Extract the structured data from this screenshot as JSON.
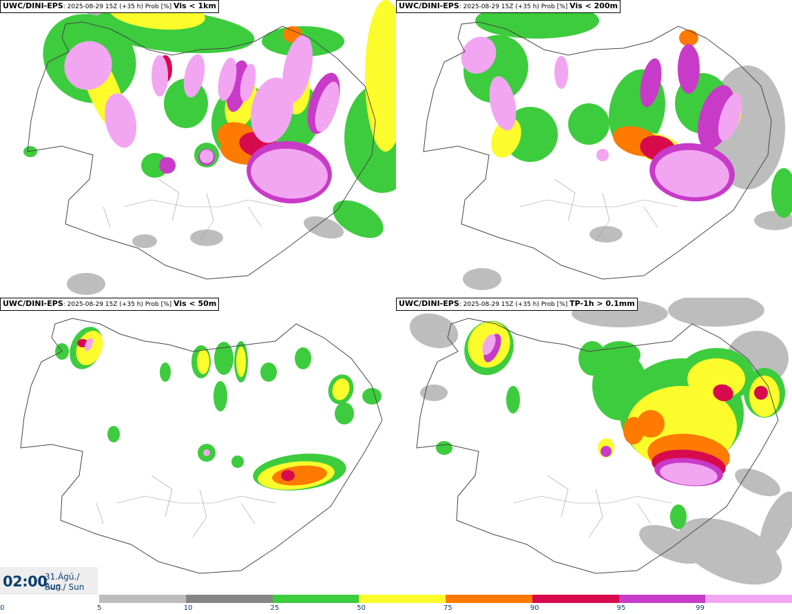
{
  "panels": [
    {
      "model": "UWC/DINI-EPS",
      "run": ": 2025-08-29 15Z (+35 h) Prob [%] ",
      "variable": "Vis < 1km"
    },
    {
      "model": "UWC/DINI-EPS",
      "run": ": 2025-08-29 15Z (+35 h) Prob [%] ",
      "variable": "Vis < 200m"
    },
    {
      "model": "UWC/DINI-EPS",
      "run": ": 2025-08-29 15Z (+35 h) Prob [%] ",
      "variable": "Vis < 50m"
    },
    {
      "model": "UWC/DINI-EPS",
      "run": ": 2025-08-29 15Z (+35 h) Prob [%] ",
      "variable": "TP-1h > 0.1mm"
    }
  ],
  "valid_time": {
    "hour": "02:00",
    "date_line": "31.Ágú./ Aug",
    "day_line": "Sun./ Sun"
  },
  "colorbar": {
    "ticks": [
      "0",
      "5",
      "10",
      "25",
      "50",
      "75",
      "90",
      "95",
      "99"
    ],
    "colors": [
      "#ffffff",
      "#bdbdbd",
      "#858585",
      "#3dcc3d",
      "#fcfc2c",
      "#ff7a00",
      "#d80a4e",
      "#c83ac8",
      "#f2a6f2"
    ]
  },
  "map_fields": {
    "p1": {
      "gray": [
        [
          140,
          25,
          14,
          30,
          0.2
        ],
        [
          125,
          412,
          28,
          16,
          0
        ],
        [
          470,
          330,
          30,
          14,
          0.3
        ],
        [
          300,
          345,
          24,
          12,
          0
        ],
        [
          210,
          350,
          18,
          10,
          0
        ]
      ],
      "green": [
        [
          250,
          45,
          120,
          30,
          0.1
        ],
        [
          555,
          200,
          55,
          80,
          0
        ],
        [
          520,
          318,
          40,
          22,
          0.5
        ],
        [
          440,
          60,
          60,
          22,
          0
        ],
        [
          355,
          180,
          48,
          56,
          0
        ],
        [
          130,
          85,
          70,
          62,
          0.6
        ],
        [
          270,
          150,
          32,
          36,
          0
        ],
        [
          425,
          170,
          40,
          50,
          0.2
        ],
        [
          300,
          225,
          18,
          18,
          0
        ],
        [
          44,
          220,
          10,
          8,
          0
        ],
        [
          225,
          240,
          20,
          18,
          0
        ]
      ],
      "yellow": [
        [
          228,
          20,
          70,
          22,
          0.1
        ],
        [
          560,
          110,
          30,
          110,
          0
        ],
        [
          150,
          130,
          22,
          70,
          -0.4
        ],
        [
          350,
          150,
          22,
          36,
          0.3
        ],
        [
          430,
          130,
          20,
          36,
          0
        ]
      ],
      "orange": [
        [
          345,
          200,
          30,
          22,
          0.3
        ],
        [
          425,
          50,
          14,
          12,
          0
        ],
        [
          360,
          215,
          40,
          24,
          0
        ]
      ],
      "red": [
        [
          375,
          210,
          28,
          18,
          0.2
        ],
        [
          240,
          100,
          10,
          20,
          0
        ]
      ],
      "mag": [
        [
          420,
          250,
          62,
          45,
          0.1
        ],
        [
          345,
          125,
          15,
          38,
          0.2
        ],
        [
          470,
          150,
          20,
          46,
          0.3
        ],
        [
          300,
          228,
          12,
          12,
          0
        ],
        [
          243,
          240,
          12,
          12,
          0
        ]
      ],
      "pink": [
        [
          420,
          252,
          56,
          36,
          0.1
        ],
        [
          395,
          160,
          30,
          48,
          0.2
        ],
        [
          432,
          100,
          20,
          50,
          0.2
        ],
        [
          128,
          95,
          34,
          36,
          0.6
        ],
        [
          175,
          175,
          22,
          40,
          -0.2
        ],
        [
          232,
          110,
          12,
          30,
          0
        ],
        [
          282,
          110,
          14,
          32,
          0.2
        ],
        [
          330,
          115,
          12,
          32,
          0.2
        ],
        [
          300,
          227,
          10,
          10,
          0
        ],
        [
          475,
          155,
          14,
          38,
          0.3
        ],
        [
          360,
          120,
          10,
          28,
          0.2
        ]
      ]
    },
    "p2": {
      "gray": [
        [
          700,
          405,
          28,
          16,
          0
        ],
        [
          1085,
          185,
          55,
          90,
          0
        ],
        [
          1125,
          320,
          30,
          14,
          0
        ],
        [
          880,
          340,
          24,
          12,
          0
        ]
      ],
      "green": [
        [
          780,
          30,
          90,
          26,
          0
        ],
        [
          1138,
          280,
          18,
          36,
          0
        ],
        [
          770,
          195,
          40,
          40,
          0.4
        ],
        [
          720,
          100,
          46,
          50,
          0.5
        ],
        [
          855,
          180,
          30,
          30,
          0
        ],
        [
          925,
          160,
          40,
          60,
          0.2
        ],
        [
          1020,
          150,
          40,
          44,
          0
        ]
      ],
      "yellow": [
        [
          735,
          200,
          20,
          30,
          0.4
        ],
        [
          955,
          215,
          40,
          20,
          0.3
        ],
        [
          1050,
          165,
          26,
          34,
          0.3
        ]
      ],
      "orange": [
        [
          925,
          205,
          36,
          20,
          0.3
        ],
        [
          1000,
          55,
          14,
          12,
          0
        ]
      ],
      "red": [
        [
          955,
          215,
          26,
          18,
          0.2
        ],
        [
          1005,
          90,
          10,
          20,
          0
        ]
      ],
      "mag": [
        [
          1005,
          250,
          62,
          42,
          0.1
        ],
        [
          1040,
          170,
          24,
          48,
          0.3
        ],
        [
          945,
          120,
          14,
          36,
          0.2
        ],
        [
          1000,
          100,
          16,
          36,
          0
        ]
      ],
      "pink": [
        [
          1005,
          252,
          54,
          34,
          0.1
        ],
        [
          695,
          80,
          24,
          28,
          0.6
        ],
        [
          730,
          150,
          18,
          40,
          -0.2
        ],
        [
          815,
          105,
          10,
          24,
          0
        ],
        [
          875,
          225,
          9,
          9,
          0
        ],
        [
          1060,
          170,
          14,
          36,
          0.3
        ]
      ]
    },
    "p3": {
      "gray": [],
      "green": [
        [
          125,
          505,
          22,
          32,
          0.4
        ],
        [
          90,
          510,
          10,
          12,
          0
        ],
        [
          240,
          540,
          8,
          14,
          0
        ],
        [
          292,
          525,
          14,
          24,
          0
        ],
        [
          325,
          520,
          14,
          24,
          0
        ],
        [
          350,
          525,
          10,
          30,
          0
        ],
        [
          320,
          575,
          10,
          22,
          0
        ],
        [
          390,
          540,
          12,
          14,
          0
        ],
        [
          495,
          565,
          18,
          22,
          0.3
        ],
        [
          540,
          575,
          14,
          12,
          0
        ],
        [
          435,
          685,
          68,
          26,
          -0.1
        ],
        [
          405,
          690,
          14,
          14,
          0
        ],
        [
          300,
          657,
          13,
          13,
          0
        ],
        [
          345,
          670,
          9,
          9,
          0
        ],
        [
          165,
          630,
          9,
          12,
          0
        ],
        [
          440,
          520,
          12,
          16,
          0
        ],
        [
          500,
          600,
          14,
          16,
          0
        ]
      ],
      "yellow": [
        [
          130,
          505,
          18,
          26,
          0.4
        ],
        [
          430,
          690,
          56,
          20,
          -0.1
        ],
        [
          495,
          565,
          12,
          16,
          0.3
        ],
        [
          350,
          525,
          7,
          22,
          0
        ],
        [
          295,
          525,
          9,
          18,
          0
        ]
      ],
      "orange": [
        [
          435,
          690,
          40,
          14,
          -0.1
        ]
      ],
      "red": [
        [
          418,
          690,
          10,
          8,
          0
        ],
        [
          120,
          498,
          8,
          6,
          0
        ]
      ],
      "mag": [],
      "pink": [
        [
          129,
          500,
          5,
          10,
          0.4
        ],
        [
          300,
          657,
          5,
          5,
          0
        ]
      ]
    },
    "p4": {
      "gray": [
        [
          630,
          480,
          36,
          24,
          0.3
        ],
        [
          900,
          455,
          70,
          20,
          0
        ],
        [
          1040,
          450,
          70,
          24,
          0
        ],
        [
          1100,
          520,
          45,
          40,
          0
        ],
        [
          1060,
          800,
          80,
          40,
          0.4
        ],
        [
          975,
          790,
          50,
          22,
          0.4
        ],
        [
          630,
          570,
          20,
          12,
          0
        ],
        [
          1130,
          760,
          20,
          50,
          0.4
        ],
        [
          1100,
          700,
          35,
          16,
          0.4
        ]
      ],
      "green": [
        [
          990,
          600,
          90,
          80,
          0
        ],
        [
          710,
          505,
          35,
          40,
          0.4
        ],
        [
          1040,
          545,
          55,
          40,
          0
        ],
        [
          900,
          560,
          40,
          50,
          0
        ],
        [
          860,
          520,
          20,
          25,
          0
        ],
        [
          900,
          515,
          30,
          20,
          0
        ],
        [
          985,
          750,
          12,
          18,
          0
        ],
        [
          1110,
          570,
          30,
          36,
          0
        ],
        [
          645,
          650,
          12,
          10,
          0
        ],
        [
          745,
          580,
          10,
          20,
          0
        ]
      ],
      "yellow": [
        [
          990,
          620,
          80,
          60,
          0
        ],
        [
          710,
          500,
          30,
          34,
          0.4
        ],
        [
          1040,
          550,
          42,
          30,
          0
        ],
        [
          1110,
          575,
          22,
          30,
          0
        ],
        [
          880,
          650,
          12,
          14,
          0
        ]
      ],
      "orange": [
        [
          1000,
          660,
          60,
          30,
          0.1
        ],
        [
          920,
          625,
          15,
          20,
          0
        ],
        [
          945,
          615,
          20,
          20,
          0
        ]
      ],
      "red": [
        [
          1000,
          675,
          54,
          22,
          0.1
        ],
        [
          1050,
          570,
          15,
          12,
          0.3
        ],
        [
          1105,
          570,
          10,
          10,
          0
        ]
      ],
      "mag": [
        [
          1000,
          685,
          50,
          20,
          0.1
        ],
        [
          715,
          505,
          10,
          22,
          0.4
        ],
        [
          880,
          655,
          8,
          8,
          0
        ]
      ],
      "pink": [
        [
          1000,
          688,
          42,
          16,
          0.1
        ],
        [
          710,
          500,
          8,
          16,
          0.4
        ]
      ]
    }
  }
}
